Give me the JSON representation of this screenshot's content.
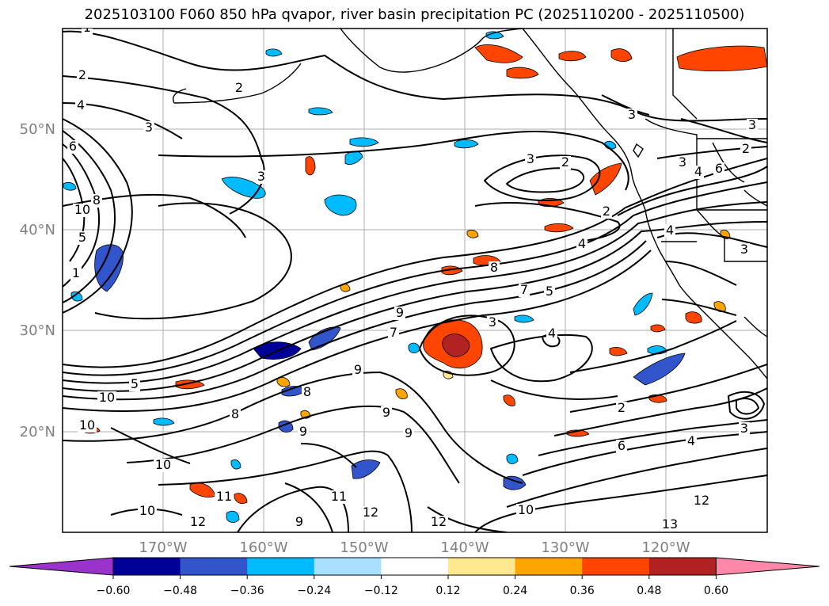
{
  "title": "2025103100 F060 850 hPa qvapor, river basin precipitation PC (2025110200 - 2025110500)",
  "lat_labels": [
    "50°N",
    "40°N",
    "30°N",
    "20°N"
  ],
  "lon_labels": [
    "170°W",
    "160°W",
    "150°W",
    "140°W",
    "130°W",
    "120°W"
  ],
  "contour_labels": [
    "1",
    "2",
    "2",
    "2",
    "3",
    "3",
    "3",
    "3",
    "2",
    "3",
    "3",
    "4",
    "4",
    "2",
    "3",
    "4",
    "7",
    "8",
    "5",
    "2",
    "10",
    "1",
    "5",
    "9",
    "8",
    "8",
    "9",
    "9",
    "9",
    "8",
    "9",
    "7",
    "6",
    "6",
    "3",
    "4",
    "3",
    "2",
    "6",
    "4",
    "12",
    "10",
    "11",
    "11",
    "12",
    "10",
    "12",
    "12",
    "13",
    "9",
    "10",
    "10",
    "5",
    "10",
    "4"
  ],
  "colorbar": {
    "tick_labels": [
      "−0.60",
      "−0.48",
      "−0.36",
      "−0.24",
      "−0.12",
      "0.12",
      "0.24",
      "0.36",
      "0.48",
      "0.60"
    ],
    "colors": [
      "#9933cc",
      "#000099",
      "#3355cc",
      "#00bbff",
      "#aae0ff",
      "#ffffff",
      "#ffe890",
      "#ffa500",
      "#ff4500",
      "#b22222",
      "#ff88aa"
    ]
  }
}
